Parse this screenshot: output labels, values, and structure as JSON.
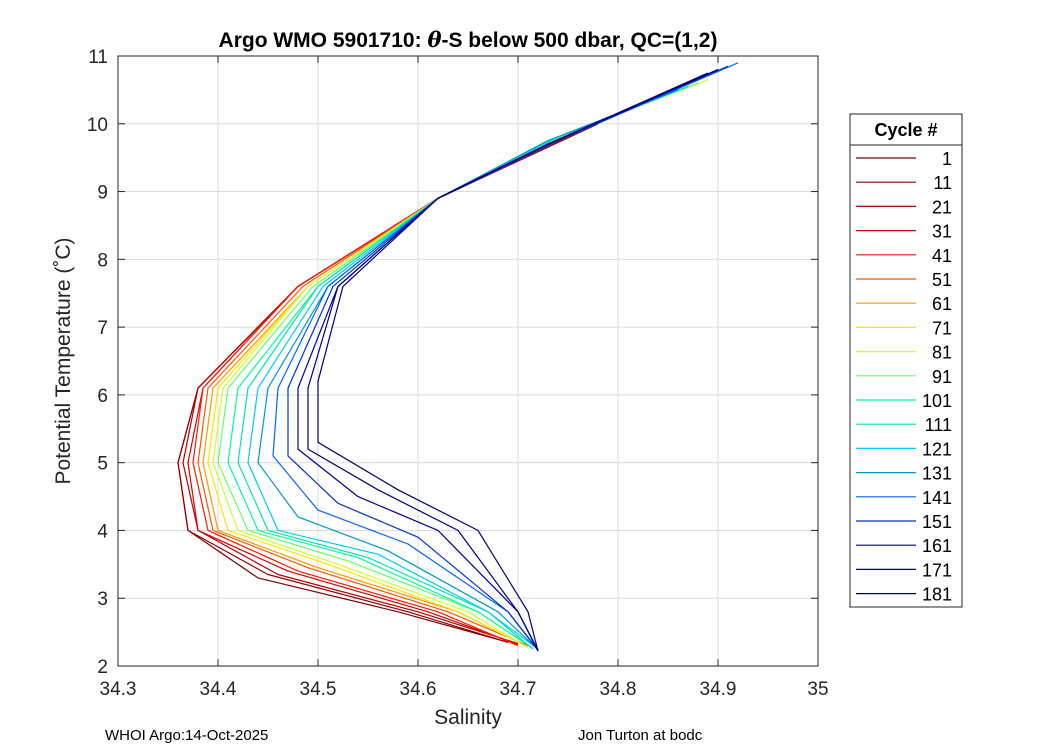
{
  "chart_data": {
    "type": "line",
    "title_prefix": "Argo WMO 5901710: ",
    "title_symbol": "θ",
    "title_suffix": "-S below 500 dbar,  QC=(1,2)",
    "xlabel": "Salinity",
    "ylabel": "Potential Temperature (˚C)",
    "xlim": [
      34.3,
      35.0
    ],
    "ylim": [
      2,
      11
    ],
    "xticks": [
      "34.3",
      "34.4",
      "34.5",
      "34.6",
      "34.7",
      "34.8",
      "34.9",
      "35"
    ],
    "yticks": [
      "2",
      "3",
      "4",
      "5",
      "6",
      "7",
      "8",
      "9",
      "10",
      "11"
    ],
    "grid": true,
    "legend_title": "Cycle #",
    "legend_position": "outside-right",
    "colormap": "jet",
    "series": [
      {
        "name": "1",
        "color": "#800000",
        "points": [
          [
            34.78,
            10.0
          ],
          [
            34.62,
            8.9
          ],
          [
            34.48,
            7.6
          ],
          [
            34.38,
            6.1
          ],
          [
            34.36,
            5.0
          ],
          [
            34.37,
            4.0
          ],
          [
            34.44,
            3.3
          ],
          [
            34.58,
            2.8
          ],
          [
            34.69,
            2.35
          ]
        ]
      },
      {
        "name": "11",
        "color": "#9a0000",
        "points": [
          [
            34.78,
            10.0
          ],
          [
            34.62,
            8.9
          ],
          [
            34.48,
            7.6
          ],
          [
            34.38,
            6.1
          ],
          [
            34.36,
            5.0
          ],
          [
            34.37,
            4.0
          ],
          [
            34.45,
            3.35
          ],
          [
            34.59,
            2.8
          ],
          [
            34.69,
            2.35
          ]
        ]
      },
      {
        "name": "21",
        "color": "#bb0000",
        "points": [
          [
            34.77,
            9.95
          ],
          [
            34.62,
            8.9
          ],
          [
            34.48,
            7.6
          ],
          [
            34.38,
            6.1
          ],
          [
            34.365,
            5.0
          ],
          [
            34.38,
            4.0
          ],
          [
            34.46,
            3.35
          ],
          [
            34.6,
            2.8
          ],
          [
            34.7,
            2.33
          ]
        ]
      },
      {
        "name": "31",
        "color": "#de0000",
        "points": [
          [
            34.77,
            9.95
          ],
          [
            34.62,
            8.9
          ],
          [
            34.48,
            7.6
          ],
          [
            34.385,
            6.1
          ],
          [
            34.37,
            5.0
          ],
          [
            34.38,
            4.0
          ],
          [
            34.47,
            3.4
          ],
          [
            34.61,
            2.8
          ],
          [
            34.7,
            2.32
          ]
        ]
      },
      {
        "name": "41",
        "color": "#ff1a00",
        "points": [
          [
            34.76,
            9.9
          ],
          [
            34.62,
            8.9
          ],
          [
            34.48,
            7.6
          ],
          [
            34.385,
            6.1
          ],
          [
            34.375,
            5.0
          ],
          [
            34.39,
            4.0
          ],
          [
            34.48,
            3.4
          ],
          [
            34.62,
            2.8
          ],
          [
            34.7,
            2.3
          ]
        ]
      },
      {
        "name": "51",
        "color": "#ff5500",
        "points": [
          [
            34.76,
            9.9
          ],
          [
            34.62,
            8.9
          ],
          [
            34.485,
            7.6
          ],
          [
            34.39,
            6.1
          ],
          [
            34.38,
            5.0
          ],
          [
            34.395,
            4.0
          ],
          [
            34.49,
            3.45
          ],
          [
            34.63,
            2.8
          ],
          [
            34.71,
            2.3
          ]
        ]
      },
      {
        "name": "61",
        "color": "#ff9900",
        "points": [
          [
            34.75,
            9.85
          ],
          [
            34.62,
            8.9
          ],
          [
            34.49,
            7.6
          ],
          [
            34.395,
            6.1
          ],
          [
            34.385,
            5.0
          ],
          [
            34.4,
            4.0
          ],
          [
            34.5,
            3.45
          ],
          [
            34.64,
            2.8
          ],
          [
            34.71,
            2.28
          ]
        ]
      },
      {
        "name": "71",
        "color": "#ffe600",
        "points": [
          [
            34.75,
            9.85
          ],
          [
            34.62,
            8.9
          ],
          [
            34.49,
            7.6
          ],
          [
            34.4,
            6.1
          ],
          [
            34.39,
            5.0
          ],
          [
            34.41,
            4.0
          ],
          [
            34.51,
            3.5
          ],
          [
            34.64,
            2.8
          ],
          [
            34.71,
            2.28
          ]
        ]
      },
      {
        "name": "81",
        "color": "#ccff33",
        "points": [
          [
            34.89,
            10.65
          ],
          [
            34.75,
            9.85
          ],
          [
            34.62,
            8.9
          ],
          [
            34.49,
            7.6
          ],
          [
            34.405,
            6.1
          ],
          [
            34.395,
            5.0
          ],
          [
            34.42,
            4.0
          ],
          [
            34.52,
            3.5
          ],
          [
            34.65,
            2.8
          ],
          [
            34.71,
            2.27
          ]
        ]
      },
      {
        "name": "91",
        "color": "#66ff66",
        "points": [
          [
            34.88,
            10.6
          ],
          [
            34.74,
            9.8
          ],
          [
            34.62,
            8.9
          ],
          [
            34.495,
            7.6
          ],
          [
            34.41,
            6.1
          ],
          [
            34.4,
            5.0
          ],
          [
            34.43,
            4.0
          ],
          [
            34.53,
            3.55
          ],
          [
            34.66,
            2.8
          ],
          [
            34.715,
            2.26
          ]
        ]
      },
      {
        "name": "101",
        "color": "#00ff99",
        "points": [
          [
            34.87,
            10.55
          ],
          [
            34.74,
            9.8
          ],
          [
            34.62,
            8.9
          ],
          [
            34.5,
            7.6
          ],
          [
            34.42,
            6.1
          ],
          [
            34.41,
            5.0
          ],
          [
            34.44,
            4.0
          ],
          [
            34.54,
            3.6
          ],
          [
            34.66,
            2.8
          ],
          [
            34.715,
            2.26
          ]
        ]
      },
      {
        "name": "111",
        "color": "#00e6b3",
        "points": [
          [
            34.87,
            10.55
          ],
          [
            34.74,
            9.8
          ],
          [
            34.62,
            8.9
          ],
          [
            34.5,
            7.6
          ],
          [
            34.43,
            6.1
          ],
          [
            34.42,
            5.0
          ],
          [
            34.45,
            4.0
          ],
          [
            34.55,
            3.6
          ],
          [
            34.67,
            2.8
          ],
          [
            34.715,
            2.25
          ]
        ]
      },
      {
        "name": "121",
        "color": "#00ccff",
        "points": [
          [
            34.86,
            10.5
          ],
          [
            34.73,
            9.75
          ],
          [
            34.62,
            8.9
          ],
          [
            34.505,
            7.6
          ],
          [
            34.44,
            6.1
          ],
          [
            34.43,
            5.0
          ],
          [
            34.46,
            4.0
          ],
          [
            34.56,
            3.65
          ],
          [
            34.67,
            2.8
          ],
          [
            34.72,
            2.25
          ]
        ]
      },
      {
        "name": "131",
        "color": "#0099cc",
        "points": [
          [
            34.86,
            10.5
          ],
          [
            34.73,
            9.75
          ],
          [
            34.62,
            8.9
          ],
          [
            34.51,
            7.6
          ],
          [
            34.45,
            6.1
          ],
          [
            34.44,
            5.0
          ],
          [
            34.48,
            4.2
          ],
          [
            34.57,
            3.7
          ],
          [
            34.68,
            2.8
          ],
          [
            34.72,
            2.24
          ]
        ]
      },
      {
        "name": "141",
        "color": "#0066ff",
        "points": [
          [
            34.92,
            10.9
          ],
          [
            34.74,
            9.75
          ],
          [
            34.62,
            8.9
          ],
          [
            34.51,
            7.6
          ],
          [
            34.46,
            6.1
          ],
          [
            34.455,
            5.1
          ],
          [
            34.5,
            4.3
          ],
          [
            34.59,
            3.8
          ],
          [
            34.69,
            2.8
          ],
          [
            34.72,
            2.24
          ]
        ]
      },
      {
        "name": "151",
        "color": "#0033cc",
        "points": [
          [
            34.91,
            10.85
          ],
          [
            34.74,
            9.75
          ],
          [
            34.62,
            8.9
          ],
          [
            34.515,
            7.6
          ],
          [
            34.47,
            6.1
          ],
          [
            34.47,
            5.1
          ],
          [
            34.52,
            4.4
          ],
          [
            34.6,
            3.9
          ],
          [
            34.69,
            2.8
          ],
          [
            34.72,
            2.23
          ]
        ]
      },
      {
        "name": "161",
        "color": "#000099",
        "points": [
          [
            34.9,
            10.8
          ],
          [
            34.73,
            9.7
          ],
          [
            34.62,
            8.9
          ],
          [
            34.52,
            7.6
          ],
          [
            34.48,
            6.1
          ],
          [
            34.48,
            5.2
          ],
          [
            34.54,
            4.5
          ],
          [
            34.62,
            4.0
          ],
          [
            34.7,
            2.8
          ],
          [
            34.72,
            2.23
          ]
        ]
      },
      {
        "name": "171",
        "color": "#000080",
        "points": [
          [
            34.9,
            10.8
          ],
          [
            34.73,
            9.7
          ],
          [
            34.62,
            8.9
          ],
          [
            34.52,
            7.6
          ],
          [
            34.49,
            6.1
          ],
          [
            34.49,
            5.2
          ],
          [
            34.56,
            4.6
          ],
          [
            34.64,
            4.0
          ],
          [
            34.7,
            2.8
          ],
          [
            34.72,
            2.22
          ]
        ]
      },
      {
        "name": "181",
        "color": "#00007a",
        "points": [
          [
            34.89,
            10.75
          ],
          [
            34.73,
            9.7
          ],
          [
            34.62,
            8.9
          ],
          [
            34.525,
            7.6
          ],
          [
            34.5,
            6.2
          ],
          [
            34.5,
            5.3
          ],
          [
            34.58,
            4.6
          ],
          [
            34.66,
            4.0
          ],
          [
            34.71,
            2.8
          ],
          [
            34.72,
            2.22
          ]
        ]
      }
    ]
  },
  "footer": {
    "left": "WHOI Argo:14-Oct-2025",
    "right": "Jon Turton at bodc"
  }
}
